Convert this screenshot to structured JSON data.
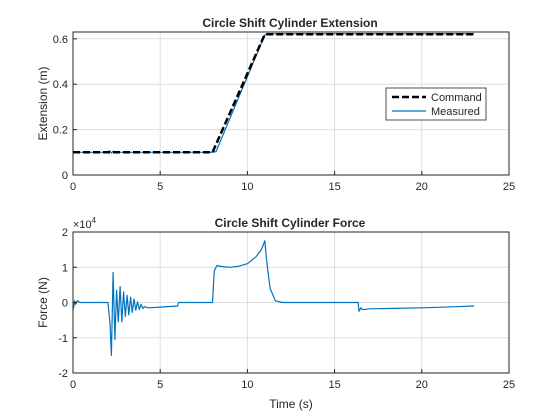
{
  "chart_data": [
    {
      "type": "line",
      "title": "Circle Shift Cylinder Extension",
      "xlabel": "",
      "ylabel": "Extension (m)",
      "xlim": [
        0,
        25
      ],
      "ylim": [
        0,
        0.63
      ],
      "xticks": [
        0,
        5,
        10,
        15,
        20,
        25
      ],
      "yticks": [
        0,
        0.2,
        0.4,
        0.6
      ],
      "ytick_labels": [
        "0",
        "0.2",
        "0.4",
        "0.6"
      ],
      "grid": true,
      "legend": "right",
      "series": [
        {
          "name": "Command",
          "style": "dashed",
          "color": "#000000",
          "x": [
            0,
            8,
            11,
            23
          ],
          "y": [
            0.1,
            0.1,
            0.62,
            0.62
          ]
        },
        {
          "name": "Measured",
          "style": "solid",
          "color": "#0072BD",
          "x": [
            0,
            2.0,
            2.1,
            2.2,
            2.3,
            2.4,
            2.5,
            2.7,
            3.0,
            8.0,
            8.2,
            11.0,
            11.2,
            23
          ],
          "y": [
            0.1,
            0.1,
            0.107,
            0.097,
            0.105,
            0.099,
            0.103,
            0.1,
            0.1,
            0.1,
            0.103,
            0.617,
            0.622,
            0.622
          ]
        }
      ]
    },
    {
      "type": "line",
      "title": "Circle Shift Cylinder Force",
      "xlabel": "Time (s)",
      "ylabel": "Force (N)",
      "y_multiplier_base": "×10",
      "y_multiplier_exp": "4",
      "xlim": [
        0,
        25
      ],
      "ylim": [
        -2,
        2
      ],
      "xticks": [
        0,
        5,
        10,
        15,
        20,
        25
      ],
      "yticks": [
        -2,
        -1,
        0,
        1,
        2
      ],
      "ytick_labels": [
        "-2",
        "-1",
        "0",
        "1",
        "2"
      ],
      "grid": true,
      "series": [
        {
          "name": "",
          "color": "#0072BD",
          "x": [
            0,
            0.05,
            0.1,
            0.15,
            0.25,
            0.4,
            0.6,
            2.0,
            2.12,
            2.2,
            2.3,
            2.4,
            2.5,
            2.6,
            2.7,
            2.8,
            2.9,
            3.0,
            3.1,
            3.2,
            3.3,
            3.4,
            3.5,
            3.6,
            3.7,
            3.8,
            3.9,
            4.0,
            4.1,
            4.3,
            5.0,
            6.0,
            6.05,
            6.2,
            8.0,
            8.1,
            8.25,
            8.5,
            9.0,
            9.5,
            10.0,
            10.5,
            10.8,
            11.0,
            11.1,
            11.3,
            11.6,
            12.0,
            16.0,
            16.35,
            16.4,
            16.5,
            16.6,
            17.0,
            18.0,
            20.0,
            22.0,
            23.0
          ],
          "y": [
            -0.2,
            -0.1,
            0.05,
            -0.05,
            0.05,
            0.0,
            0.0,
            0.0,
            -0.6,
            -1.5,
            0.85,
            -1.05,
            0.35,
            -0.55,
            0.45,
            -0.55,
            0.3,
            -0.4,
            0.2,
            -0.35,
            0.15,
            -0.28,
            0.1,
            -0.22,
            0.02,
            -0.2,
            -0.05,
            -0.17,
            -0.12,
            -0.15,
            -0.13,
            -0.1,
            0.0,
            0.0,
            0.0,
            0.9,
            1.05,
            1.02,
            1.0,
            1.03,
            1.1,
            1.3,
            1.5,
            1.75,
            1.2,
            0.4,
            0.05,
            0.0,
            0.0,
            0.0,
            -0.25,
            -0.15,
            -0.2,
            -0.18,
            -0.17,
            -0.15,
            -0.12,
            -0.1
          ]
        }
      ]
    }
  ]
}
